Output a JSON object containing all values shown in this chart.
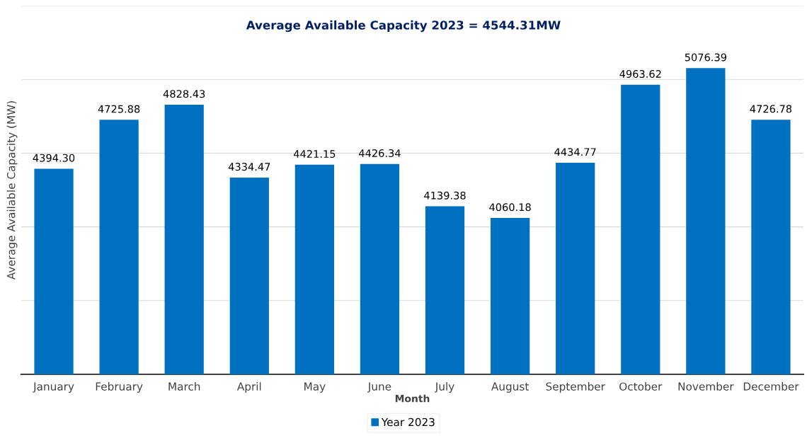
{
  "chart_data": {
    "type": "bar",
    "title": "Average Available Capacity 2023 = 4544.31MW",
    "xlabel": "Month",
    "ylabel": "Average Available Capacity (MW)",
    "categories": [
      "January",
      "February",
      "March",
      "April",
      "May",
      "June",
      "July",
      "August",
      "September",
      "October",
      "November",
      "December"
    ],
    "series": [
      {
        "name": "Year 2023",
        "color": "#0070c0",
        "values": [
          4394.3,
          4725.88,
          4828.43,
          4334.47,
          4421.15,
          4426.34,
          4139.38,
          4060.18,
          4434.77,
          4963.62,
          5076.39,
          4726.78
        ],
        "value_labels": [
          "4394.30",
          "4725.88",
          "4828.43",
          "4334.47",
          "4421.15",
          "4426.34",
          "4139.38",
          "4060.18",
          "4434.77",
          "4963.62",
          "5076.39",
          "4726.78"
        ]
      }
    ],
    "ylim": [
      3000,
      5500
    ],
    "yticks": [
      {
        "value": 3000,
        "label": null
      },
      {
        "value": 3500,
        "label": null
      },
      {
        "value": 4000,
        "label": null
      },
      {
        "value": 4500,
        "label": null
      },
      {
        "value": 5000,
        "label": null
      },
      {
        "value": 5500,
        "label": null
      }
    ],
    "tick_labels": "x",
    "grid": "y",
    "legend": "bottom"
  }
}
